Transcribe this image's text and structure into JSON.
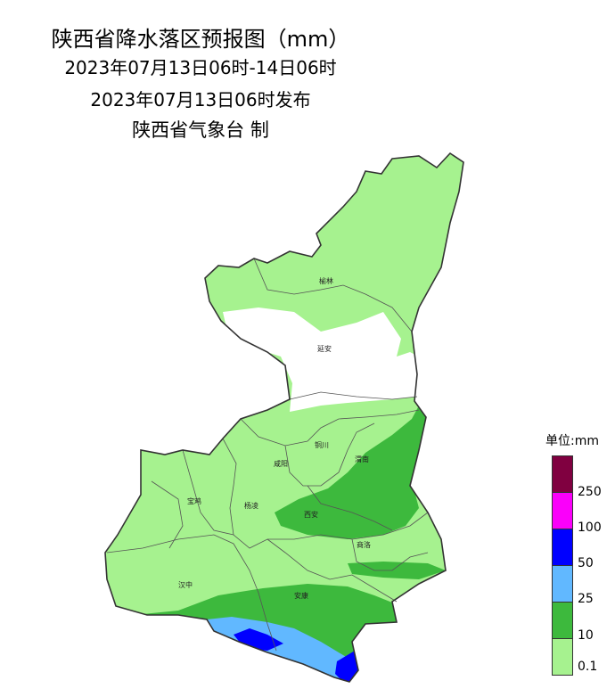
{
  "header": {
    "title": "陕西省降水落区预报图（mm）",
    "period": "2023年07月13日06时-14日06时",
    "issued": "2023年07月13日06时发布",
    "agency": "陕西省气象台 制"
  },
  "cities": [
    "榆林",
    "延安",
    "铜川",
    "渭南",
    "咸阳",
    "宝鸡",
    "杨凌",
    "西安",
    "商洛",
    "汉中",
    "安康"
  ],
  "legend": {
    "unit_label": "单位:mm",
    "levels": [
      {
        "label": "0.1",
        "color": "#a6f28f"
      },
      {
        "label": "10",
        "color": "#3db93d"
      },
      {
        "label": "25",
        "color": "#61b8ff"
      },
      {
        "label": "50",
        "color": "#0000ff"
      },
      {
        "label": "100",
        "color": "#fa00fa"
      },
      {
        "label": "250",
        "color": "#800040"
      }
    ]
  },
  "colors": {
    "no_rain": "#ffffff",
    "light": "#a6f28f",
    "moderate": "#3db93d",
    "heavy": "#61b8ff",
    "rainstorm": "#0000ff",
    "border": "#333333"
  }
}
